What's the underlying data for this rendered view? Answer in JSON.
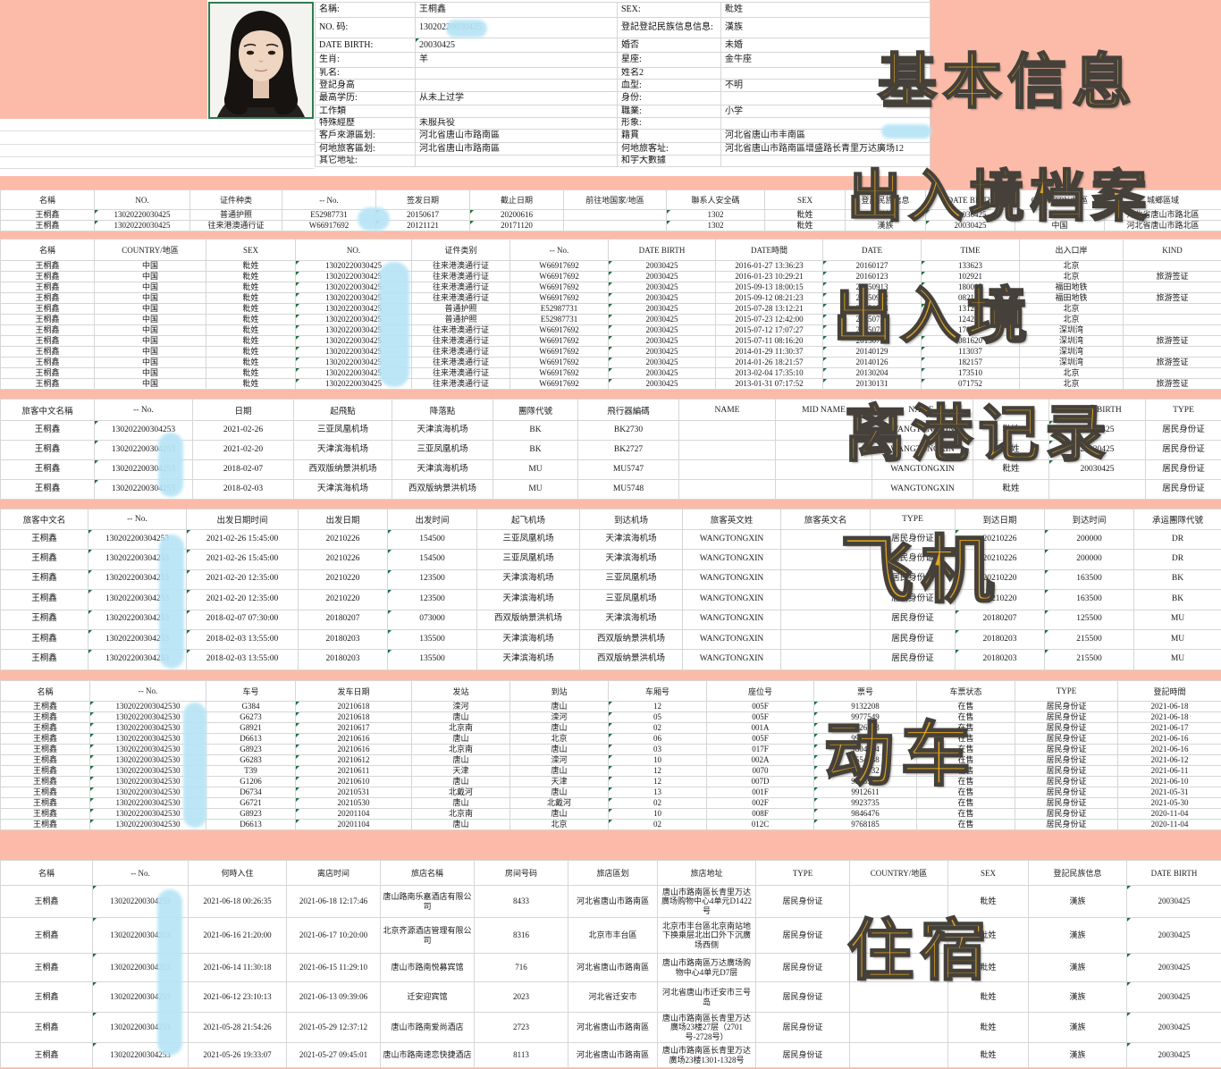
{
  "colors": {
    "background": "#fcbba9",
    "overlay_text": "#e2a41d",
    "overlay_outline": "#45413a",
    "redaction": "#b7e4f6",
    "corner_triangle": "#1d7044",
    "grid_line": "#d6d6d6"
  },
  "section_labels": [
    "基本信息",
    "出入境档案",
    "出入境",
    "离港记录",
    "飞机",
    "动车",
    "住宿"
  ],
  "profile": {
    "photo_alt": "portrait-photo",
    "rows": [
      [
        "名稱:",
        "王桐鑫",
        "SEX:",
        "粃姓"
      ],
      [
        "NO. 码:",
        "13020220030425",
        "登記登記民族信息信息:",
        "漢族"
      ],
      [
        "DATE BIRTH:",
        "20030425",
        "婚否",
        "未婚"
      ],
      [
        "生肖:",
        "羊",
        "星座:",
        "金牛座"
      ],
      [
        "乳名:",
        "",
        "姓名2",
        ""
      ],
      [
        "登記身高",
        "",
        "血型:",
        "不明"
      ],
      [
        "最高学历:",
        "从未上过学",
        "身份:",
        ""
      ],
      [
        "工作類",
        "",
        "職業:",
        "小学"
      ],
      [
        "特殊經歷",
        "未服兵役",
        "形象:",
        ""
      ],
      [
        "客戶來源區划:",
        "河北省唐山市路南區",
        "籍貫",
        "河北省唐山市丰南區"
      ],
      [
        "何地旅客區划:",
        "河北省唐山市路南區",
        "何地旅客址:",
        "河北省唐山市路南區增盛路长青里万达廣场12"
      ],
      [
        "其它地址:",
        "",
        "和宇大數據",
        ""
      ]
    ]
  },
  "tables": {
    "documents": {
      "headers": [
        "名稱",
        "NO.",
        "证件种类",
        "-- No.",
        "签发日期",
        "截止日期",
        "前往地国家/地區",
        "聯系人安全碼",
        "SEX",
        "登記民族信息",
        "DATE BIRTH",
        "COUNTRY/地區",
        "城鄉區域"
      ],
      "rows": [
        [
          "王桐鑫",
          "13020220030425",
          "普通护照",
          "E52987731",
          "20150617",
          "20200616",
          "",
          "1302",
          "粃姓",
          "漢族",
          "20030425",
          "中国",
          "河北省唐山市路北區"
        ],
        [
          "王桐鑫",
          "13020220030425",
          "往来港澳通行证",
          "W66917692",
          "20121121",
          "20171120",
          "",
          "1302",
          "粃姓",
          "漢族",
          "20030425",
          "中国",
          "河北省唐山市路北區"
        ]
      ]
    },
    "border_crossings": {
      "headers": [
        "名稱",
        "COUNTRY/地區",
        "SEX",
        "NO.",
        "证件类别",
        "-- No.",
        "DATE BIRTH",
        "DATE時間",
        "DATE",
        "TIME",
        "出入口岸",
        "KIND"
      ],
      "rows": [
        [
          "王桐鑫",
          "中国",
          "粃姓",
          "13020220030425",
          "往来港澳通行证",
          "W66917692",
          "20030425",
          "2016-01-27 13:36:23",
          "20160127",
          "133623",
          "北京",
          ""
        ],
        [
          "王桐鑫",
          "中国",
          "粃姓",
          "13020220030425",
          "往来港澳通行证",
          "W66917692",
          "20030425",
          "2016-01-23 10:29:21",
          "20160123",
          "102921",
          "北京",
          "旅游签证"
        ],
        [
          "王桐鑫",
          "中国",
          "粃姓",
          "13020220030425",
          "往来港澳通行证",
          "W66917692",
          "20030425",
          "2015-09-13 18:00:15",
          "20150913",
          "180015",
          "福田地铁",
          ""
        ],
        [
          "王桐鑫",
          "中国",
          "粃姓",
          "13020220030425",
          "往来港澳通行证",
          "W66917692",
          "20030425",
          "2015-09-12 08:21:23",
          "20150912",
          "082123",
          "福田地铁",
          "旅游签证"
        ],
        [
          "王桐鑫",
          "中国",
          "粃姓",
          "13020220030425",
          "普通护照",
          "E52987731",
          "20030425",
          "2015-07-28 13:12:21",
          "20150728",
          "131221",
          "北京",
          ""
        ],
        [
          "王桐鑫",
          "中国",
          "粃姓",
          "13020220030425",
          "普通护照",
          "E52987731",
          "20030425",
          "2015-07-23 12:42:00",
          "20150723",
          "124200",
          "北京",
          ""
        ],
        [
          "王桐鑫",
          "中国",
          "粃姓",
          "13020220030425",
          "往来港澳通行证",
          "W66917692",
          "20030425",
          "2015-07-12 17:07:27",
          "20150712",
          "170727",
          "深圳湾",
          ""
        ],
        [
          "王桐鑫",
          "中国",
          "粃姓",
          "13020220030425",
          "往来港澳通行证",
          "W66917692",
          "20030425",
          "2015-07-11 08:16:20",
          "20150711",
          "081620",
          "深圳湾",
          "旅游签证"
        ],
        [
          "王桐鑫",
          "中国",
          "粃姓",
          "13020220030425",
          "往来港澳通行证",
          "W66917692",
          "20030425",
          "2014-01-29 11:30:37",
          "20140129",
          "113037",
          "深圳湾",
          ""
        ],
        [
          "王桐鑫",
          "中国",
          "粃姓",
          "13020220030425",
          "往来港澳通行证",
          "W66917692",
          "20030425",
          "2014-01-26 18:21:57",
          "20140126",
          "182157",
          "深圳湾",
          "旅游签证"
        ],
        [
          "王桐鑫",
          "中国",
          "粃姓",
          "13020220030425",
          "往来港澳通行证",
          "W66917692",
          "20030425",
          "2013-02-04 17:35:10",
          "20130204",
          "173510",
          "北京",
          ""
        ],
        [
          "王桐鑫",
          "中国",
          "粃姓",
          "13020220030425",
          "往来港澳通行证",
          "W66917692",
          "20030425",
          "2013-01-31 07:17:52",
          "20130131",
          "071752",
          "北京",
          "旅游签证"
        ]
      ]
    },
    "departures": {
      "headers": [
        "旅客中文名稱",
        "-- No.",
        "日期",
        "起飛點",
        "降落點",
        "團隊代號",
        "飛行器編碼",
        "NAME",
        "MID NAME",
        "NAME-",
        "SEX",
        "DATE BIRTH",
        "TYPE"
      ],
      "rows": [
        [
          "王桐鑫",
          "130202200304253",
          "2021-02-26",
          "三亚凤凰机场",
          "天津滨海机场",
          "BK",
          "BK2730",
          "",
          "",
          "WANGTONGXIN",
          "粃姓",
          "20030425",
          "居民身份证"
        ],
        [
          "王桐鑫",
          "130202200304253",
          "2021-02-20",
          "天津滨海机场",
          "三亚凤凰机场",
          "BK",
          "BK2727",
          "",
          "",
          "WANGTONGXIN",
          "粃姓",
          "20030425",
          "居民身份证"
        ],
        [
          "王桐鑫",
          "130202200304253",
          "2018-02-07",
          "西双版纳景洪机场",
          "天津滨海机场",
          "MU",
          "MU5747",
          "",
          "",
          "WANGTONGXIN",
          "粃姓",
          "20030425",
          "居民身份证"
        ],
        [
          "王桐鑫",
          "130202200304253",
          "2018-02-03",
          "天津滨海机场",
          "西双版纳景洪机场",
          "MU",
          "MU5748",
          "",
          "",
          "WANGTONGXIN",
          "粃姓",
          "",
          "居民身份证"
        ]
      ]
    },
    "flights": {
      "headers": [
        "旅客中文名",
        "-- No.",
        "出发日期时间",
        "出发日期",
        "出发时间",
        "起飞机场",
        "到达机场",
        "旅客英文姓",
        "旅客英文名",
        "TYPE",
        "到达日期",
        "到达时间",
        "承运團隊代號"
      ],
      "rows": [
        [
          "王桐鑫",
          "130202200304253",
          "2021-02-26 15:45:00",
          "20210226",
          "154500",
          "三亚凤凰机场",
          "天津滨海机场",
          "WANGTONGXIN",
          "",
          "居民身份证",
          "20210226",
          "200000",
          "DR"
        ],
        [
          "王桐鑫",
          "130202200304253",
          "2021-02-26 15:45:00",
          "20210226",
          "154500",
          "三亚凤凰机场",
          "天津滨海机场",
          "WANGTONGXIN",
          "",
          "居民身份证",
          "20210226",
          "200000",
          "DR"
        ],
        [
          "王桐鑫",
          "130202200304253",
          "2021-02-20 12:35:00",
          "20210220",
          "123500",
          "天津滨海机场",
          "三亚凤凰机场",
          "WANGTONGXIN",
          "",
          "居民身份证",
          "20210220",
          "163500",
          "BK"
        ],
        [
          "王桐鑫",
          "130202200304253",
          "2021-02-20 12:35:00",
          "20210220",
          "123500",
          "天津滨海机场",
          "三亚凤凰机场",
          "WANGTONGXIN",
          "",
          "居民身份证",
          "20210220",
          "163500",
          "BK"
        ],
        [
          "王桐鑫",
          "130202200304253",
          "2018-02-07 07:30:00",
          "20180207",
          "073000",
          "西双版纳景洪机场",
          "天津滨海机场",
          "WANGTONGXIN",
          "",
          "居民身份证",
          "20180207",
          "125500",
          "MU"
        ],
        [
          "王桐鑫",
          "130202200304253",
          "2018-02-03 13:55:00",
          "20180203",
          "135500",
          "天津滨海机场",
          "西双版纳景洪机场",
          "WANGTONGXIN",
          "",
          "居民身份证",
          "20180203",
          "215500",
          "MU"
        ],
        [
          "王桐鑫",
          "130202200304253",
          "2018-02-03 13:55:00",
          "20180203",
          "135500",
          "天津滨海机场",
          "西双版纳景洪机场",
          "WANGTONGXIN",
          "",
          "居民身份证",
          "20180203",
          "215500",
          "MU"
        ]
      ]
    },
    "trains": {
      "headers": [
        "名稱",
        "-- No.",
        "车号",
        "发车日期",
        "发站",
        "到站",
        "车厢号",
        "座位号",
        "票号",
        "车票状态",
        "TYPE",
        "登記時間"
      ],
      "rows": [
        [
          "王桐鑫",
          "1302022003042530",
          "G384",
          "20210618",
          "滦河",
          "唐山",
          "12",
          "005F",
          "9132208",
          "在售",
          "居民身份证",
          "2021-06-18"
        ],
        [
          "王桐鑫",
          "1302022003042530",
          "G6273",
          "20210618",
          "唐山",
          "滦河",
          "05",
          "005F",
          "9977549",
          "在售",
          "居民身份证",
          "2021-06-18"
        ],
        [
          "王桐鑫",
          "1302022003042530",
          "G8921",
          "20210617",
          "北京南",
          "唐山",
          "02",
          "001A",
          "9826593",
          "在售",
          "居民身份证",
          "2021-06-17"
        ],
        [
          "王桐鑫",
          "1302022003042530",
          "D6613",
          "20210616",
          "唐山",
          "北京",
          "06",
          "005F",
          "9971648",
          "在售",
          "居民身份证",
          "2021-06-16"
        ],
        [
          "王桐鑫",
          "1302022003042530",
          "G8923",
          "20210616",
          "北京南",
          "唐山",
          "03",
          "017F",
          "9804924",
          "在售",
          "居民身份证",
          "2021-06-16"
        ],
        [
          "王桐鑫",
          "1302022003042530",
          "G6283",
          "20210612",
          "唐山",
          "滦河",
          "10",
          "002A",
          "9554438",
          "在售",
          "居民身份证",
          "2021-06-12"
        ],
        [
          "王桐鑫",
          "1302022003042530",
          "T39",
          "20210611",
          "天津",
          "唐山",
          "12",
          "0070",
          "9712932",
          "在售",
          "居民身份证",
          "2021-06-11"
        ],
        [
          "王桐鑫",
          "1302022003042530",
          "G1206",
          "20210610",
          "唐山",
          "天津",
          "12",
          "007D",
          "9913998",
          "在售",
          "居民身份证",
          "2021-06-10"
        ],
        [
          "王桐鑫",
          "1302022003042530",
          "D6734",
          "20210531",
          "北戴河",
          "唐山",
          "13",
          "001F",
          "9912611",
          "在售",
          "居民身份证",
          "2021-05-31"
        ],
        [
          "王桐鑫",
          "1302022003042530",
          "G6721",
          "20210530",
          "唐山",
          "北戴河",
          "02",
          "002F",
          "9923735",
          "在售",
          "居民身份证",
          "2021-05-30"
        ],
        [
          "王桐鑫",
          "1302022003042530",
          "G8923",
          "20201104",
          "北京南",
          "唐山",
          "10",
          "008F",
          "9846476",
          "在售",
          "居民身份证",
          "2020-11-04"
        ],
        [
          "王桐鑫",
          "1302022003042530",
          "D6613",
          "20201104",
          "唐山",
          "北京",
          "02",
          "012C",
          "9768185",
          "在售",
          "居民身份证",
          "2020-11-04"
        ]
      ]
    },
    "hotels": {
      "headers": [
        "名稱",
        "-- No.",
        "何時入住",
        "离店时间",
        "旅店名稱",
        "房间号码",
        "旅店區划",
        "旅店地址",
        "TYPE",
        "COUNTRY/地區",
        "SEX",
        "登記民族信息",
        "DATE BIRTH"
      ],
      "rows": [
        [
          "王桐鑫",
          "130202200304253",
          "2021-06-18 00:26:35",
          "2021-06-18 12:17:46",
          "唐山路南乐嘉酒店有限公司",
          "8433",
          "河北省唐山市路南區",
          "唐山市路南區长青里万达廣场购物中心4单元D1422号",
          "居民身份证",
          "",
          "粃姓",
          "漢族",
          "20030425"
        ],
        [
          "王桐鑫",
          "130202200304253",
          "2021-06-16 21:20:00",
          "2021-06-17 10:20:00",
          "北京齐源酒店管理有限公司",
          "8316",
          "北京市丰台區",
          "北京市丰台區北京南站地下换乘层北出口外下沉廣场西侧",
          "居民身份证",
          "",
          "粃姓",
          "漢族",
          "20030425"
        ],
        [
          "王桐鑫",
          "130202200304253",
          "2021-06-14 11:30:18",
          "2021-06-15 11:29:10",
          "唐山市路南悦募宾馆",
          "716",
          "河北省唐山市路南區",
          "唐山市路南區万达廣场购物中心4单元D7层",
          "居民身份证",
          "",
          "粃姓",
          "漢族",
          "20030425"
        ],
        [
          "王桐鑫",
          "130202200304253",
          "2021-06-12 23:10:13",
          "2021-06-13 09:39:06",
          "迁安迎宾馆",
          "2023",
          "河北省迁安市",
          "河北省唐山市迁安市三号岛",
          "居民身份证",
          "",
          "粃姓",
          "漢族",
          "20030425"
        ],
        [
          "王桐鑫",
          "130202200304253",
          "2021-05-28 21:54:26",
          "2021-05-29 12:37:12",
          "唐山市路南爱尚酒店",
          "2723",
          "河北省唐山市路南區",
          "唐山市路南區长青里万达廣场23楼27层（2701号-2728号）",
          "居民身份证",
          "",
          "粃姓",
          "漢族",
          "20030425"
        ],
        [
          "王桐鑫",
          "130202200304253",
          "2021-05-26 19:33:07",
          "2021-05-27 09:45:01",
          "唐山市路南速恋快捷酒店",
          "8113",
          "河北省唐山市路南區",
          "唐山市路南區长青里万达廣场23楼1301-1328号",
          "居民身份证",
          "",
          "粃姓",
          "漢族",
          "20030425"
        ]
      ]
    }
  }
}
